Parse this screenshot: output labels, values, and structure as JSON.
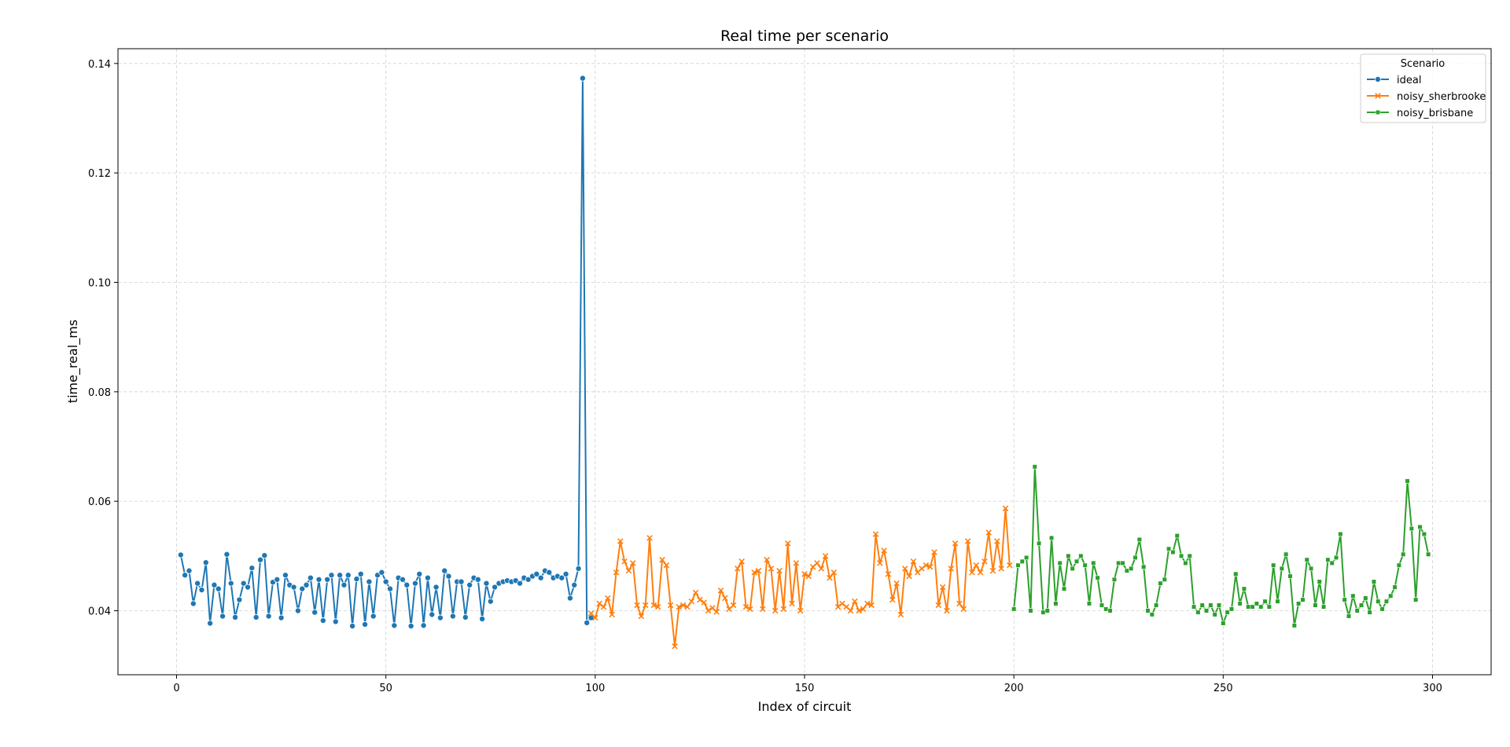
{
  "chart_data": {
    "type": "line",
    "title": "Real time per scenario",
    "xlabel": "Index of circuit",
    "ylabel": "time_real_ms",
    "xlim": [
      -14,
      314
    ],
    "ylim": [
      0.0283,
      0.1427
    ],
    "xticks": [
      0,
      50,
      100,
      150,
      200,
      250,
      300
    ],
    "yticks": [
      0.04,
      0.06,
      0.08,
      0.1,
      0.12,
      0.14
    ],
    "ytick_labels": [
      "0.04",
      "0.06",
      "0.08",
      "0.10",
      "0.12",
      "0.14"
    ],
    "grid": true,
    "legend": {
      "title": "Scenario",
      "position": "top-right"
    },
    "series": [
      {
        "name": "ideal",
        "color": "#1f77b4",
        "marker": "circle",
        "x_start": 1,
        "values": [
          0.0502,
          0.0465,
          0.0473,
          0.0413,
          0.045,
          0.0438,
          0.0488,
          0.0377,
          0.0447,
          0.044,
          0.039,
          0.0503,
          0.045,
          0.0388,
          0.042,
          0.045,
          0.0443,
          0.0478,
          0.0388,
          0.0493,
          0.0501,
          0.039,
          0.0452,
          0.0457,
          0.0387,
          0.0465,
          0.0447,
          0.0443,
          0.04,
          0.044,
          0.0447,
          0.046,
          0.0397,
          0.0457,
          0.0382,
          0.0457,
          0.0465,
          0.038,
          0.0465,
          0.0447,
          0.0465,
          0.0372,
          0.0458,
          0.0467,
          0.0375,
          0.0453,
          0.039,
          0.0465,
          0.047,
          0.0453,
          0.044,
          0.0373,
          0.046,
          0.0457,
          0.0447,
          0.0372,
          0.045,
          0.0467,
          0.0373,
          0.046,
          0.0393,
          0.0443,
          0.0387,
          0.0473,
          0.0463,
          0.039,
          0.0453,
          0.0453,
          0.0388,
          0.0447,
          0.046,
          0.0457,
          0.0385,
          0.045,
          0.0417,
          0.0443,
          0.045,
          0.0453,
          0.0455,
          0.0453,
          0.0455,
          0.045,
          0.046,
          0.0457,
          0.0463,
          0.0467,
          0.046,
          0.0473,
          0.047,
          0.046,
          0.0463,
          0.046,
          0.0467,
          0.0423,
          0.0447,
          0.0477,
          0.1373,
          0.0378,
          0.0387
        ]
      },
      {
        "name": "noisy_sherbrooke",
        "color": "#ff7f0e",
        "marker": "x",
        "x_start": 99,
        "values": [
          0.0395,
          0.0387,
          0.0413,
          0.0407,
          0.0423,
          0.0393,
          0.047,
          0.0527,
          0.049,
          0.0473,
          0.0487,
          0.041,
          0.039,
          0.041,
          0.0533,
          0.041,
          0.0407,
          0.0493,
          0.0483,
          0.041,
          0.0335,
          0.0407,
          0.041,
          0.0407,
          0.0417,
          0.0433,
          0.042,
          0.0415,
          0.04,
          0.0405,
          0.0398,
          0.0437,
          0.0423,
          0.0403,
          0.041,
          0.0477,
          0.049,
          0.0407,
          0.0403,
          0.047,
          0.0473,
          0.0403,
          0.0493,
          0.0477,
          0.04,
          0.0473,
          0.0403,
          0.0523,
          0.0413,
          0.0487,
          0.04,
          0.0467,
          0.0463,
          0.048,
          0.0487,
          0.0477,
          0.05,
          0.046,
          0.047,
          0.0407,
          0.0413,
          0.0407,
          0.04,
          0.0417,
          0.04,
          0.0403,
          0.0413,
          0.041,
          0.054,
          0.0487,
          0.051,
          0.0467,
          0.042,
          0.045,
          0.0393,
          0.0477,
          0.0463,
          0.049,
          0.047,
          0.0477,
          0.0483,
          0.048,
          0.0507,
          0.041,
          0.0443,
          0.04,
          0.0477,
          0.0523,
          0.0413,
          0.0403,
          0.0527,
          0.047,
          0.0483,
          0.047,
          0.049,
          0.0543,
          0.0473,
          0.0527,
          0.0477,
          0.0587,
          0.0483
        ]
      },
      {
        "name": "noisy_brisbane",
        "color": "#2ca02c",
        "marker": "square",
        "x_start": 200,
        "values": [
          0.0403,
          0.0483,
          0.049,
          0.0497,
          0.04,
          0.0663,
          0.0523,
          0.0397,
          0.04,
          0.0533,
          0.0413,
          0.0487,
          0.044,
          0.05,
          0.0477,
          0.049,
          0.05,
          0.0483,
          0.0413,
          0.0487,
          0.046,
          0.041,
          0.0403,
          0.04,
          0.0457,
          0.0487,
          0.0487,
          0.0473,
          0.0477,
          0.0497,
          0.053,
          0.048,
          0.04,
          0.0393,
          0.041,
          0.045,
          0.0457,
          0.0513,
          0.0507,
          0.0537,
          0.05,
          0.0487,
          0.05,
          0.0407,
          0.0397,
          0.041,
          0.04,
          0.041,
          0.0393,
          0.041,
          0.0377,
          0.0397,
          0.0403,
          0.0467,
          0.0413,
          0.044,
          0.0407,
          0.0407,
          0.0413,
          0.0407,
          0.0417,
          0.0407,
          0.0483,
          0.0417,
          0.0477,
          0.0503,
          0.0463,
          0.0373,
          0.0413,
          0.042,
          0.0493,
          0.0477,
          0.041,
          0.0453,
          0.0407,
          0.0493,
          0.0487,
          0.0497,
          0.054,
          0.042,
          0.039,
          0.0427,
          0.04,
          0.041,
          0.0423,
          0.0397,
          0.0453,
          0.0417,
          0.0403,
          0.0417,
          0.0427,
          0.0443,
          0.0483,
          0.0503,
          0.0637,
          0.055,
          0.042,
          0.0553,
          0.054,
          0.0503
        ]
      }
    ]
  }
}
